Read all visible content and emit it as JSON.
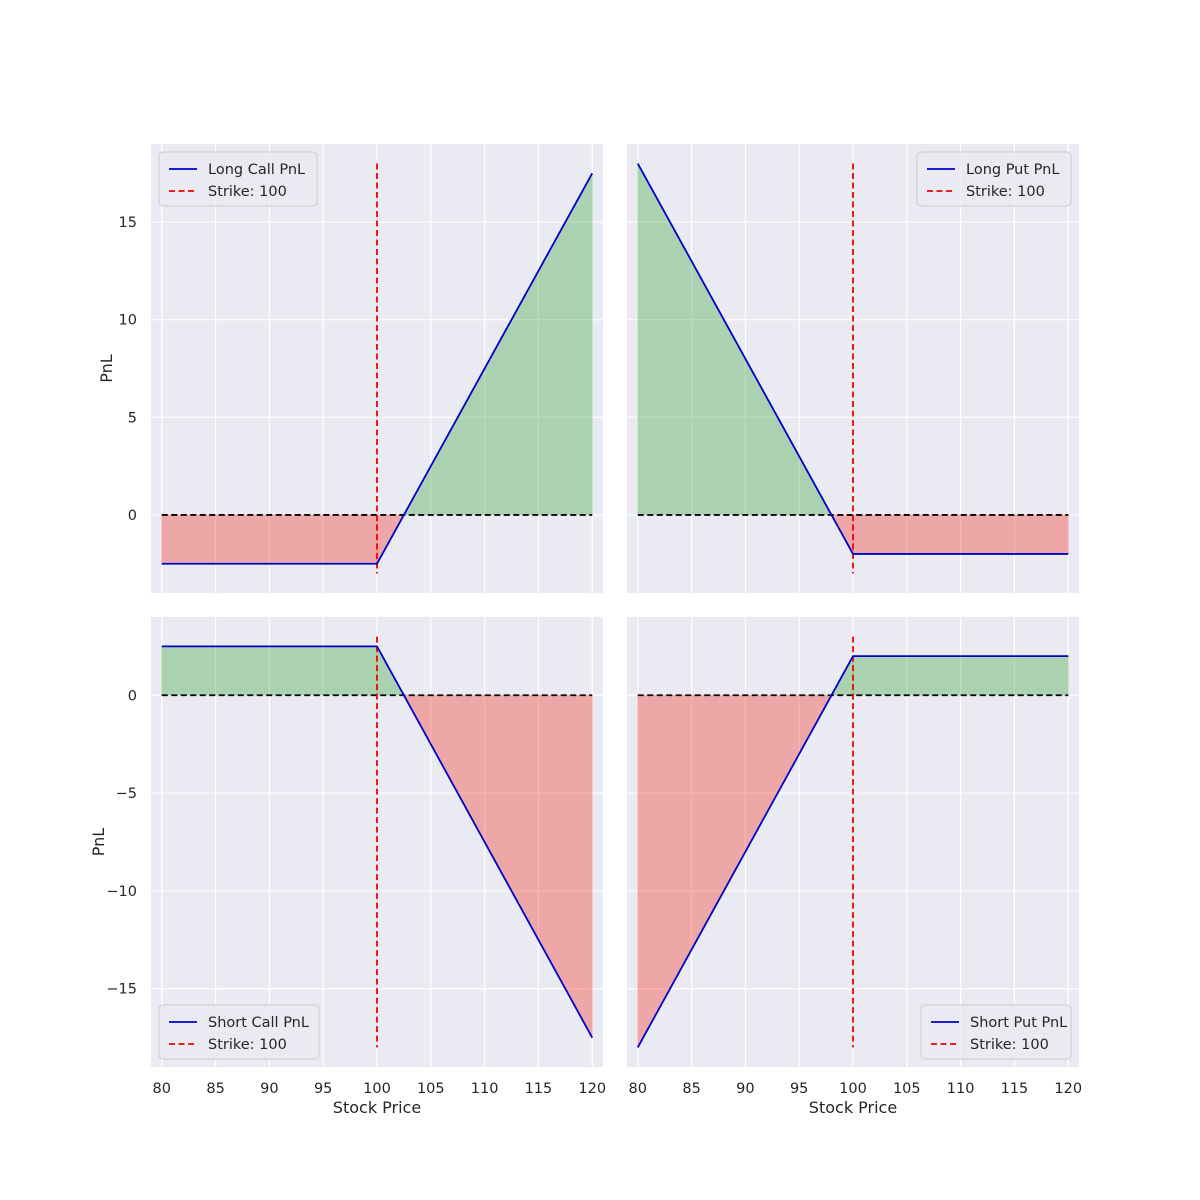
{
  "chart_data": [
    {
      "type": "line",
      "title": "",
      "xlabel": "",
      "ylabel": "PnL",
      "xlim": [
        79,
        121
      ],
      "ylim": [
        -4,
        19
      ],
      "xticks": [
        80,
        85,
        90,
        95,
        100,
        105,
        110,
        115,
        120
      ],
      "yticks": [
        0,
        5,
        10,
        15
      ],
      "show_xtick_labels": false,
      "show_ytick_labels": true,
      "strike": 100,
      "strike_ylim": [
        -3,
        18
      ],
      "series": [
        {
          "name": "Long Call PnL",
          "color": "#0000cc",
          "x": [
            80,
            100,
            120
          ],
          "y": [
            -2.5,
            -2.5,
            17.5
          ]
        }
      ],
      "legend": {
        "position": "top-left",
        "entries": [
          "Long Call PnL",
          "Strike: 100"
        ]
      },
      "fill": {
        "profit_color": "#4caf50",
        "loss_color": "#f44336"
      },
      "zero_line": true,
      "grid": true
    },
    {
      "type": "line",
      "title": "",
      "xlabel": "",
      "ylabel": "",
      "xlim": [
        79,
        121
      ],
      "ylim": [
        -4,
        19
      ],
      "xticks": [
        80,
        85,
        90,
        95,
        100,
        105,
        110,
        115,
        120
      ],
      "yticks": [
        0,
        5,
        10,
        15
      ],
      "show_xtick_labels": false,
      "show_ytick_labels": false,
      "strike": 100,
      "strike_ylim": [
        -3,
        18
      ],
      "series": [
        {
          "name": "Long Put PnL",
          "color": "#0000cc",
          "x": [
            80,
            100,
            120
          ],
          "y": [
            18,
            -2,
            -2
          ]
        }
      ],
      "legend": {
        "position": "top-right",
        "entries": [
          "Long Put PnL",
          "Strike: 100"
        ]
      },
      "fill": {
        "profit_color": "#4caf50",
        "loss_color": "#f44336"
      },
      "zero_line": true,
      "grid": true
    },
    {
      "type": "line",
      "title": "",
      "xlabel": "Stock Price",
      "ylabel": "PnL",
      "xlim": [
        79,
        121
      ],
      "ylim": [
        -19,
        4
      ],
      "xticks": [
        80,
        85,
        90,
        95,
        100,
        105,
        110,
        115,
        120
      ],
      "yticks": [
        -15,
        -10,
        -5,
        0
      ],
      "ytick_labels": [
        "−15",
        "−10",
        "−5",
        "0"
      ],
      "show_xtick_labels": true,
      "show_ytick_labels": true,
      "strike": 100,
      "strike_ylim": [
        -18,
        3
      ],
      "series": [
        {
          "name": "Short Call PnL",
          "color": "#0000cc",
          "x": [
            80,
            100,
            120
          ],
          "y": [
            2.5,
            2.5,
            -17.5
          ]
        }
      ],
      "legend": {
        "position": "bottom-left",
        "entries": [
          "Short Call PnL",
          "Strike: 100"
        ]
      },
      "fill": {
        "profit_color": "#4caf50",
        "loss_color": "#f44336"
      },
      "zero_line": true,
      "grid": true
    },
    {
      "type": "line",
      "title": "",
      "xlabel": "Stock Price",
      "ylabel": "",
      "xlim": [
        79,
        121
      ],
      "ylim": [
        -19,
        4
      ],
      "xticks": [
        80,
        85,
        90,
        95,
        100,
        105,
        110,
        115,
        120
      ],
      "yticks": [
        -15,
        -10,
        -5,
        0
      ],
      "show_xtick_labels": true,
      "show_ytick_labels": false,
      "strike": 100,
      "strike_ylim": [
        -18,
        3
      ],
      "series": [
        {
          "name": "Short Put PnL",
          "color": "#0000cc",
          "x": [
            80,
            100,
            120
          ],
          "y": [
            -18,
            2,
            2
          ]
        }
      ],
      "legend": {
        "position": "bottom-right",
        "entries": [
          "Short Put PnL",
          "Strike: 100"
        ]
      },
      "fill": {
        "profit_color": "#4caf50",
        "loss_color": "#f44336"
      },
      "zero_line": true,
      "grid": true
    }
  ]
}
